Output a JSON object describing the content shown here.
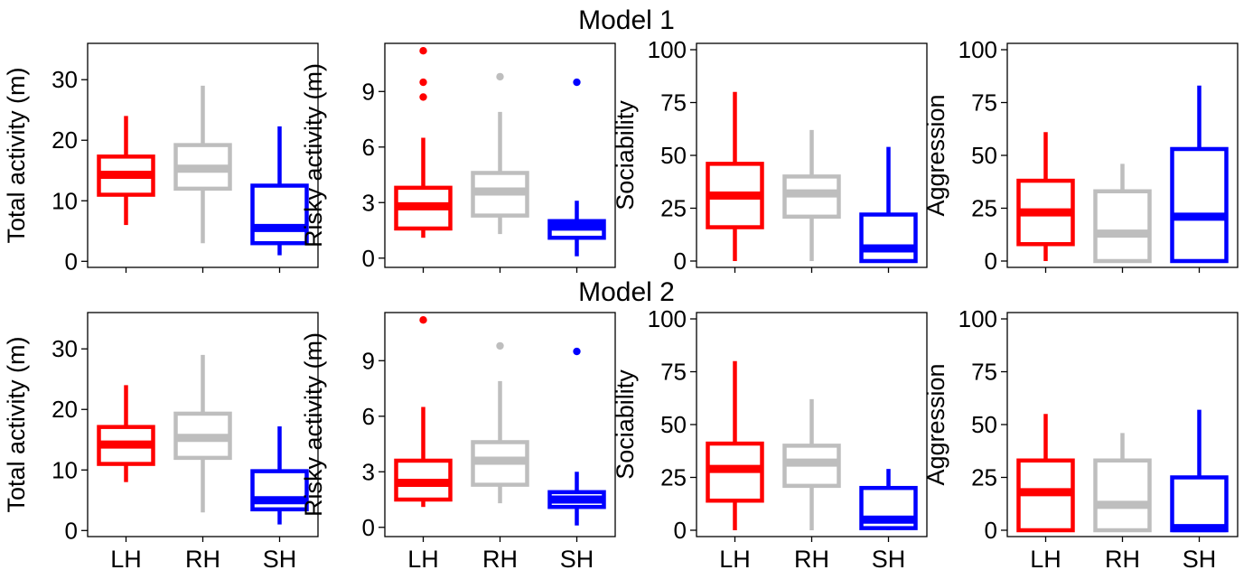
{
  "colors": {
    "LH": "#ff0000",
    "RH": "#bebebe",
    "SH": "#0000ff",
    "axis": "#000000"
  },
  "rows": [
    {
      "title": "Model 1"
    },
    {
      "title": "Model 2"
    }
  ],
  "chart_data": [
    {
      "type": "box",
      "row": 0,
      "ylabel": "Total activity (m)",
      "ylim": [
        -1,
        36
      ],
      "yticks": [
        0,
        10,
        20,
        30
      ],
      "show_x_labels": false,
      "categories": [
        "LH",
        "RH",
        "SH"
      ],
      "boxes": [
        {
          "min": 6,
          "q1": 11,
          "median": 14.3,
          "q3": 17.3,
          "max": 24,
          "outliers": []
        },
        {
          "min": 3,
          "q1": 12,
          "median": 15.3,
          "q3": 19.2,
          "max": 29,
          "outliers": []
        },
        {
          "min": 1,
          "q1": 3,
          "median": 5.5,
          "q3": 12.5,
          "max": 22.3,
          "outliers": []
        }
      ]
    },
    {
      "type": "box",
      "row": 0,
      "ylabel": "Risky activity (m)",
      "ylim": [
        -0.5,
        11.6
      ],
      "yticks": [
        0,
        3,
        6,
        9
      ],
      "show_x_labels": false,
      "categories": [
        "LH",
        "RH",
        "SH"
      ],
      "boxes": [
        {
          "min": 1.1,
          "q1": 1.6,
          "median": 2.8,
          "q3": 3.8,
          "max": 6.5,
          "outliers": [
            8.7,
            9.5,
            11.2
          ]
        },
        {
          "min": 1.3,
          "q1": 2.3,
          "median": 3.6,
          "q3": 4.6,
          "max": 7.9,
          "outliers": [
            9.8
          ]
        },
        {
          "min": 0.1,
          "q1": 1.1,
          "median": 1.7,
          "q3": 2.0,
          "max": 3.1,
          "outliers": [
            9.5
          ]
        }
      ]
    },
    {
      "type": "box",
      "row": 0,
      "ylabel": "Sociability",
      "ylim": [
        -3,
        103
      ],
      "yticks": [
        0,
        25,
        50,
        75,
        100
      ],
      "show_x_labels": false,
      "categories": [
        "LH",
        "RH",
        "SH"
      ],
      "boxes": [
        {
          "min": 0,
          "q1": 16,
          "median": 31,
          "q3": 46,
          "max": 80,
          "outliers": []
        },
        {
          "min": 0,
          "q1": 21,
          "median": 32,
          "q3": 40,
          "max": 62,
          "outliers": []
        },
        {
          "min": 0,
          "q1": 0,
          "median": 6,
          "q3": 22,
          "max": 54,
          "outliers": []
        }
      ]
    },
    {
      "type": "box",
      "row": 0,
      "ylabel": "Aggression",
      "ylim": [
        -3,
        103
      ],
      "yticks": [
        0,
        25,
        50,
        75,
        100
      ],
      "show_x_labels": false,
      "categories": [
        "LH",
        "RH",
        "SH"
      ],
      "boxes": [
        {
          "min": 0,
          "q1": 8,
          "median": 23,
          "q3": 38,
          "max": 61,
          "outliers": []
        },
        {
          "min": 0,
          "q1": 0,
          "median": 13,
          "q3": 33,
          "max": 46,
          "outliers": []
        },
        {
          "min": 0,
          "q1": 0,
          "median": 21,
          "q3": 53,
          "max": 83,
          "outliers": []
        }
      ]
    },
    {
      "type": "box",
      "row": 1,
      "ylabel": "Total activity (m)",
      "ylim": [
        -1,
        36
      ],
      "yticks": [
        0,
        10,
        20,
        30
      ],
      "show_x_labels": true,
      "categories": [
        "LH",
        "RH",
        "SH"
      ],
      "boxes": [
        {
          "min": 8,
          "q1": 11,
          "median": 14.2,
          "q3": 17.1,
          "max": 24,
          "outliers": []
        },
        {
          "min": 3,
          "q1": 12,
          "median": 15.3,
          "q3": 19.3,
          "max": 29,
          "outliers": []
        },
        {
          "min": 1,
          "q1": 3.5,
          "median": 5,
          "q3": 9.8,
          "max": 17.2,
          "outliers": []
        }
      ]
    },
    {
      "type": "box",
      "row": 1,
      "ylabel": "Risky activity (m)",
      "ylim": [
        -0.5,
        11.6
      ],
      "yticks": [
        0,
        3,
        6,
        9
      ],
      "show_x_labels": true,
      "categories": [
        "LH",
        "RH",
        "SH"
      ],
      "boxes": [
        {
          "min": 1.1,
          "q1": 1.5,
          "median": 2.4,
          "q3": 3.6,
          "max": 6.5,
          "outliers": [
            11.2
          ]
        },
        {
          "min": 1.3,
          "q1": 2.3,
          "median": 3.6,
          "q3": 4.6,
          "max": 7.9,
          "outliers": [
            9.8
          ]
        },
        {
          "min": 0.1,
          "q1": 1.1,
          "median": 1.5,
          "q3": 1.9,
          "max": 3.0,
          "outliers": [
            9.5
          ]
        }
      ]
    },
    {
      "type": "box",
      "row": 1,
      "ylabel": "Sociability",
      "ylim": [
        -3,
        103
      ],
      "yticks": [
        0,
        25,
        50,
        75,
        100
      ],
      "show_x_labels": true,
      "categories": [
        "LH",
        "RH",
        "SH"
      ],
      "boxes": [
        {
          "min": 0,
          "q1": 14,
          "median": 29,
          "q3": 41,
          "max": 80,
          "outliers": []
        },
        {
          "min": 0,
          "q1": 21,
          "median": 32,
          "q3": 40,
          "max": 62,
          "outliers": []
        },
        {
          "min": 0,
          "q1": 1,
          "median": 5,
          "q3": 20,
          "max": 29,
          "outliers": []
        }
      ]
    },
    {
      "type": "box",
      "row": 1,
      "ylabel": "Aggression",
      "ylim": [
        -3,
        103
      ],
      "yticks": [
        0,
        25,
        50,
        75,
        100
      ],
      "show_x_labels": true,
      "categories": [
        "LH",
        "RH",
        "SH"
      ],
      "boxes": [
        {
          "min": 0,
          "q1": 0,
          "median": 18,
          "q3": 33,
          "max": 55,
          "outliers": []
        },
        {
          "min": 0,
          "q1": 0,
          "median": 12,
          "q3": 33,
          "max": 46,
          "outliers": []
        },
        {
          "min": 0,
          "q1": 0,
          "median": 1,
          "q3": 25,
          "max": 57,
          "outliers": []
        }
      ]
    }
  ]
}
